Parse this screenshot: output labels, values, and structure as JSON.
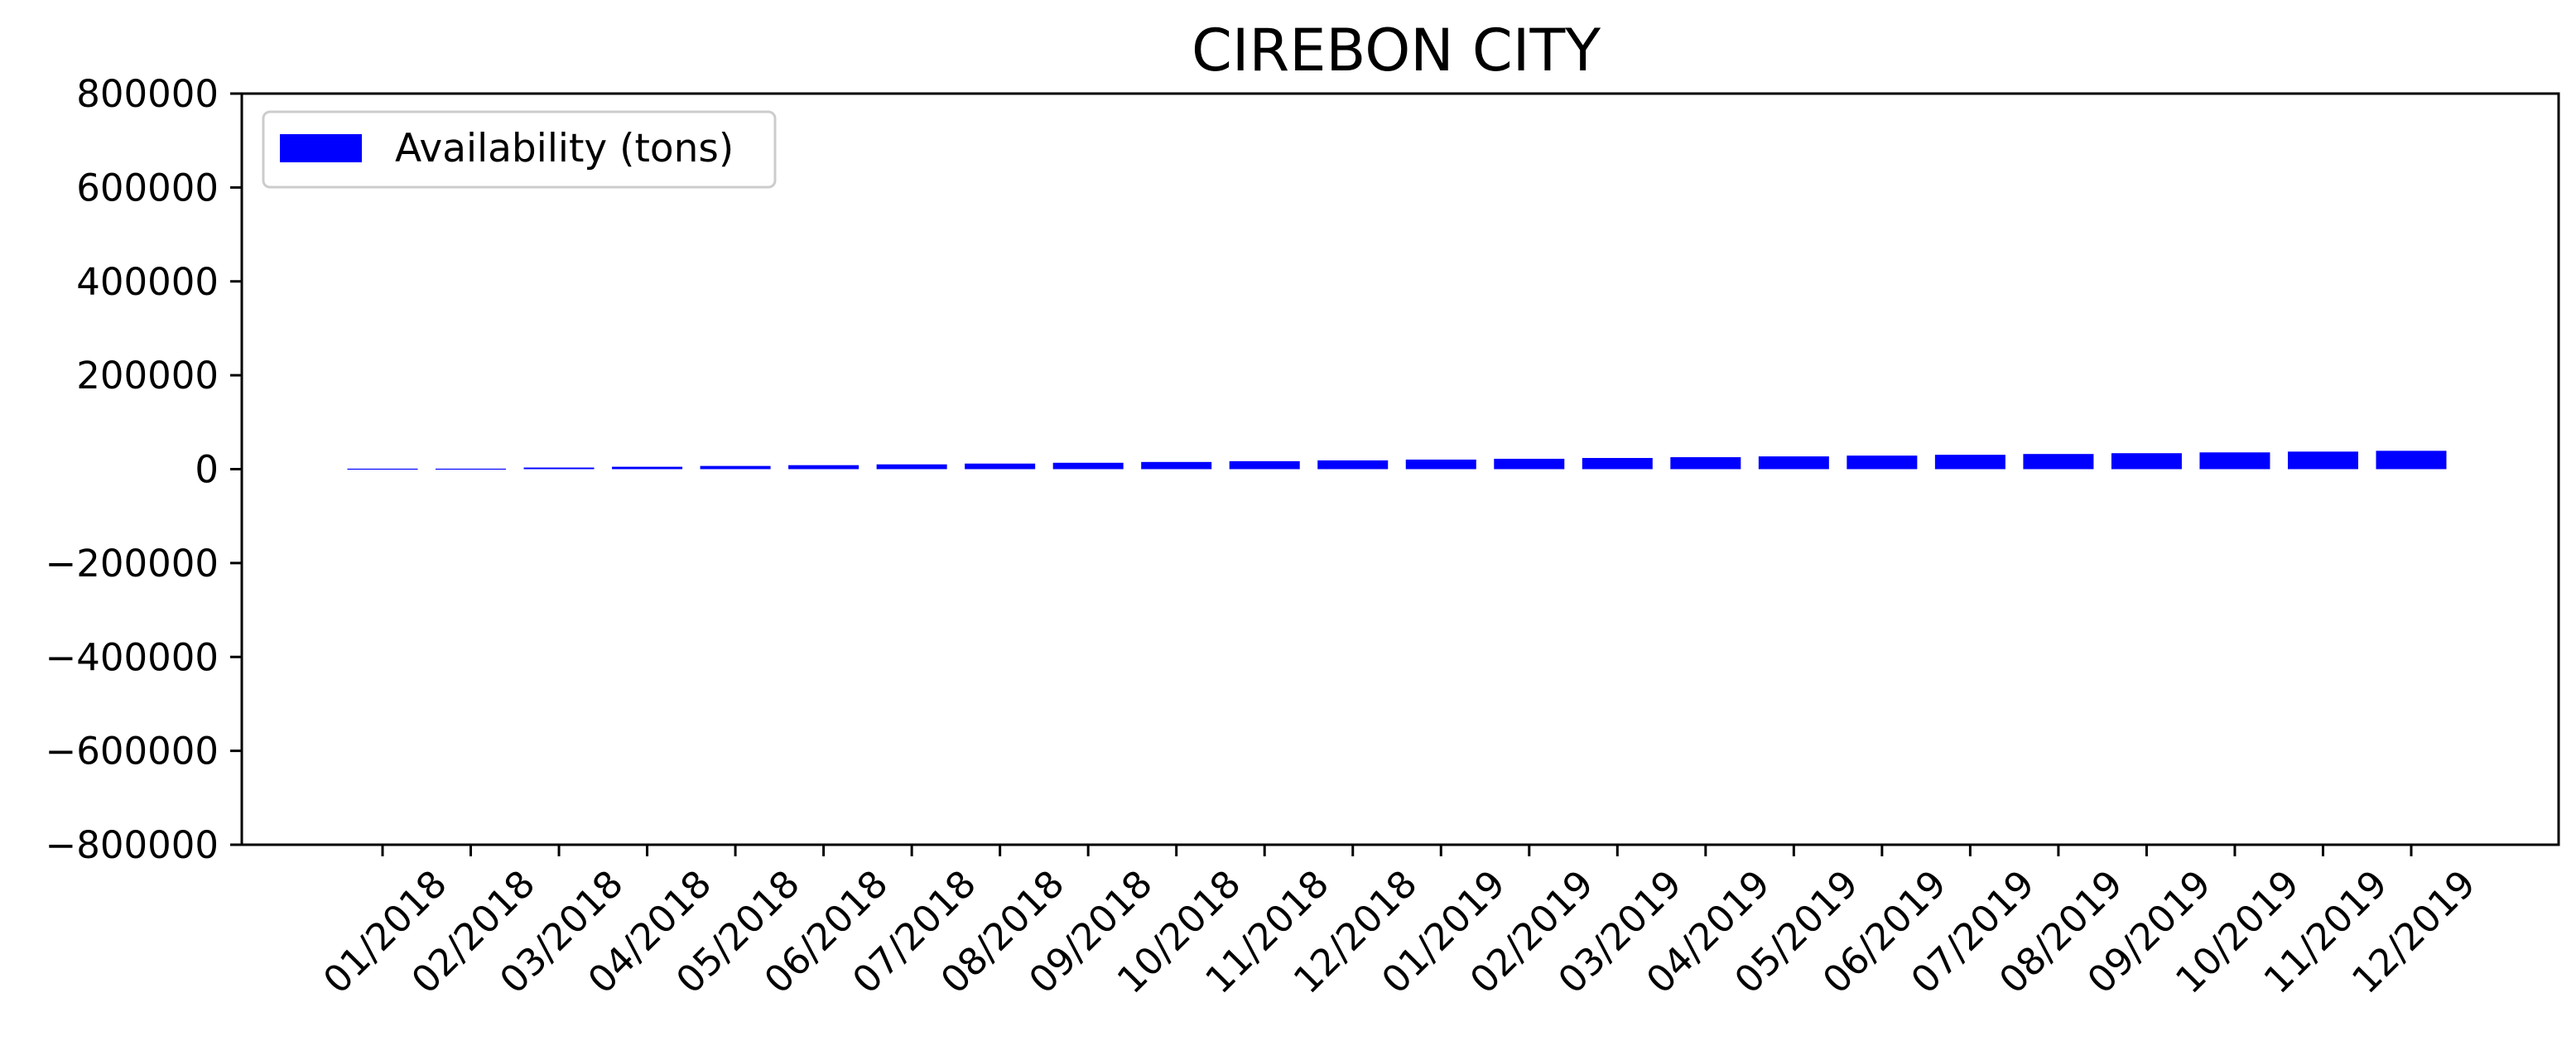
{
  "chart_data": {
    "type": "bar",
    "title": "CIREBON CITY",
    "xlabel": "",
    "ylabel": "",
    "categories": [
      "01/2018",
      "02/2018",
      "03/2018",
      "04/2018",
      "05/2018",
      "06/2018",
      "07/2018",
      "08/2018",
      "09/2018",
      "10/2018",
      "11/2018",
      "12/2018",
      "01/2019",
      "02/2019",
      "03/2019",
      "04/2019",
      "05/2019",
      "06/2019",
      "07/2019",
      "08/2019",
      "09/2019",
      "10/2019",
      "11/2019",
      "12/2019"
    ],
    "series": [
      {
        "name": "Availability (tons)",
        "color": "#0000ff",
        "values": [
          0,
          1700,
          3400,
          5100,
          6800,
          8500,
          10200,
          11900,
          13600,
          15300,
          17000,
          18700,
          20400,
          22100,
          23800,
          25500,
          27200,
          28900,
          30600,
          32300,
          34000,
          35700,
          37400,
          39100
        ]
      }
    ],
    "ylim": [
      -800000,
      800000
    ],
    "yticks": [
      "800000",
      "600000",
      "400000",
      "200000",
      "0",
      "−200000",
      "−400000",
      "−600000",
      "−800000"
    ],
    "ytick_values": [
      800000,
      600000,
      400000,
      200000,
      0,
      -200000,
      -400000,
      -600000,
      -800000
    ],
    "grid": false,
    "legend_position": "top-left"
  }
}
